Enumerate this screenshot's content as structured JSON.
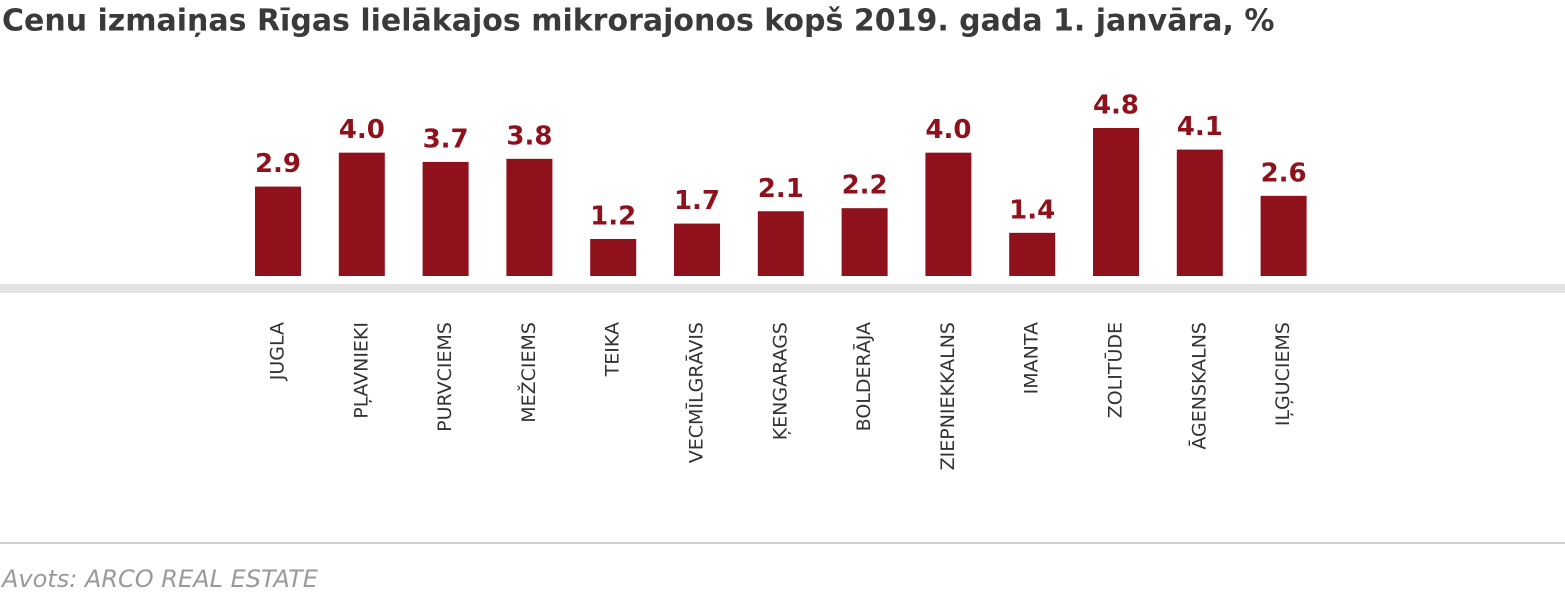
{
  "chart_data": {
    "type": "bar",
    "title": "Cenu izmaiņas Rīgas lielākajos mikrorajonos kopš 2019. gada 1. janvāra, %",
    "categories": [
      "JUGLA",
      "PĻAVNIEKI",
      "PURVCIEMS",
      "MEŽCIEMS",
      "TEIKA",
      "VECMĪLGRĀVIS",
      "ĶENGARAGS",
      "BOLDERĀJA",
      "ZIEPNIEKKALNS",
      "IMANTA",
      "ZOLITŪDE",
      "ĀGENSKALNS",
      "IĻĢUCIEMS"
    ],
    "values": [
      2.9,
      4.0,
      3.7,
      3.8,
      1.2,
      1.7,
      2.1,
      2.2,
      4.0,
      1.4,
      4.8,
      4.1,
      2.6
    ],
    "value_labels": [
      "2.9",
      "4.0",
      "3.7",
      "3.8",
      "1.2",
      "1.7",
      "2.1",
      "2.2",
      "4.0",
      "1.4",
      "4.8",
      "4.1",
      "2.6"
    ],
    "color": "#8e111c",
    "source": "Avots: ARCO REAL ESTATE"
  }
}
